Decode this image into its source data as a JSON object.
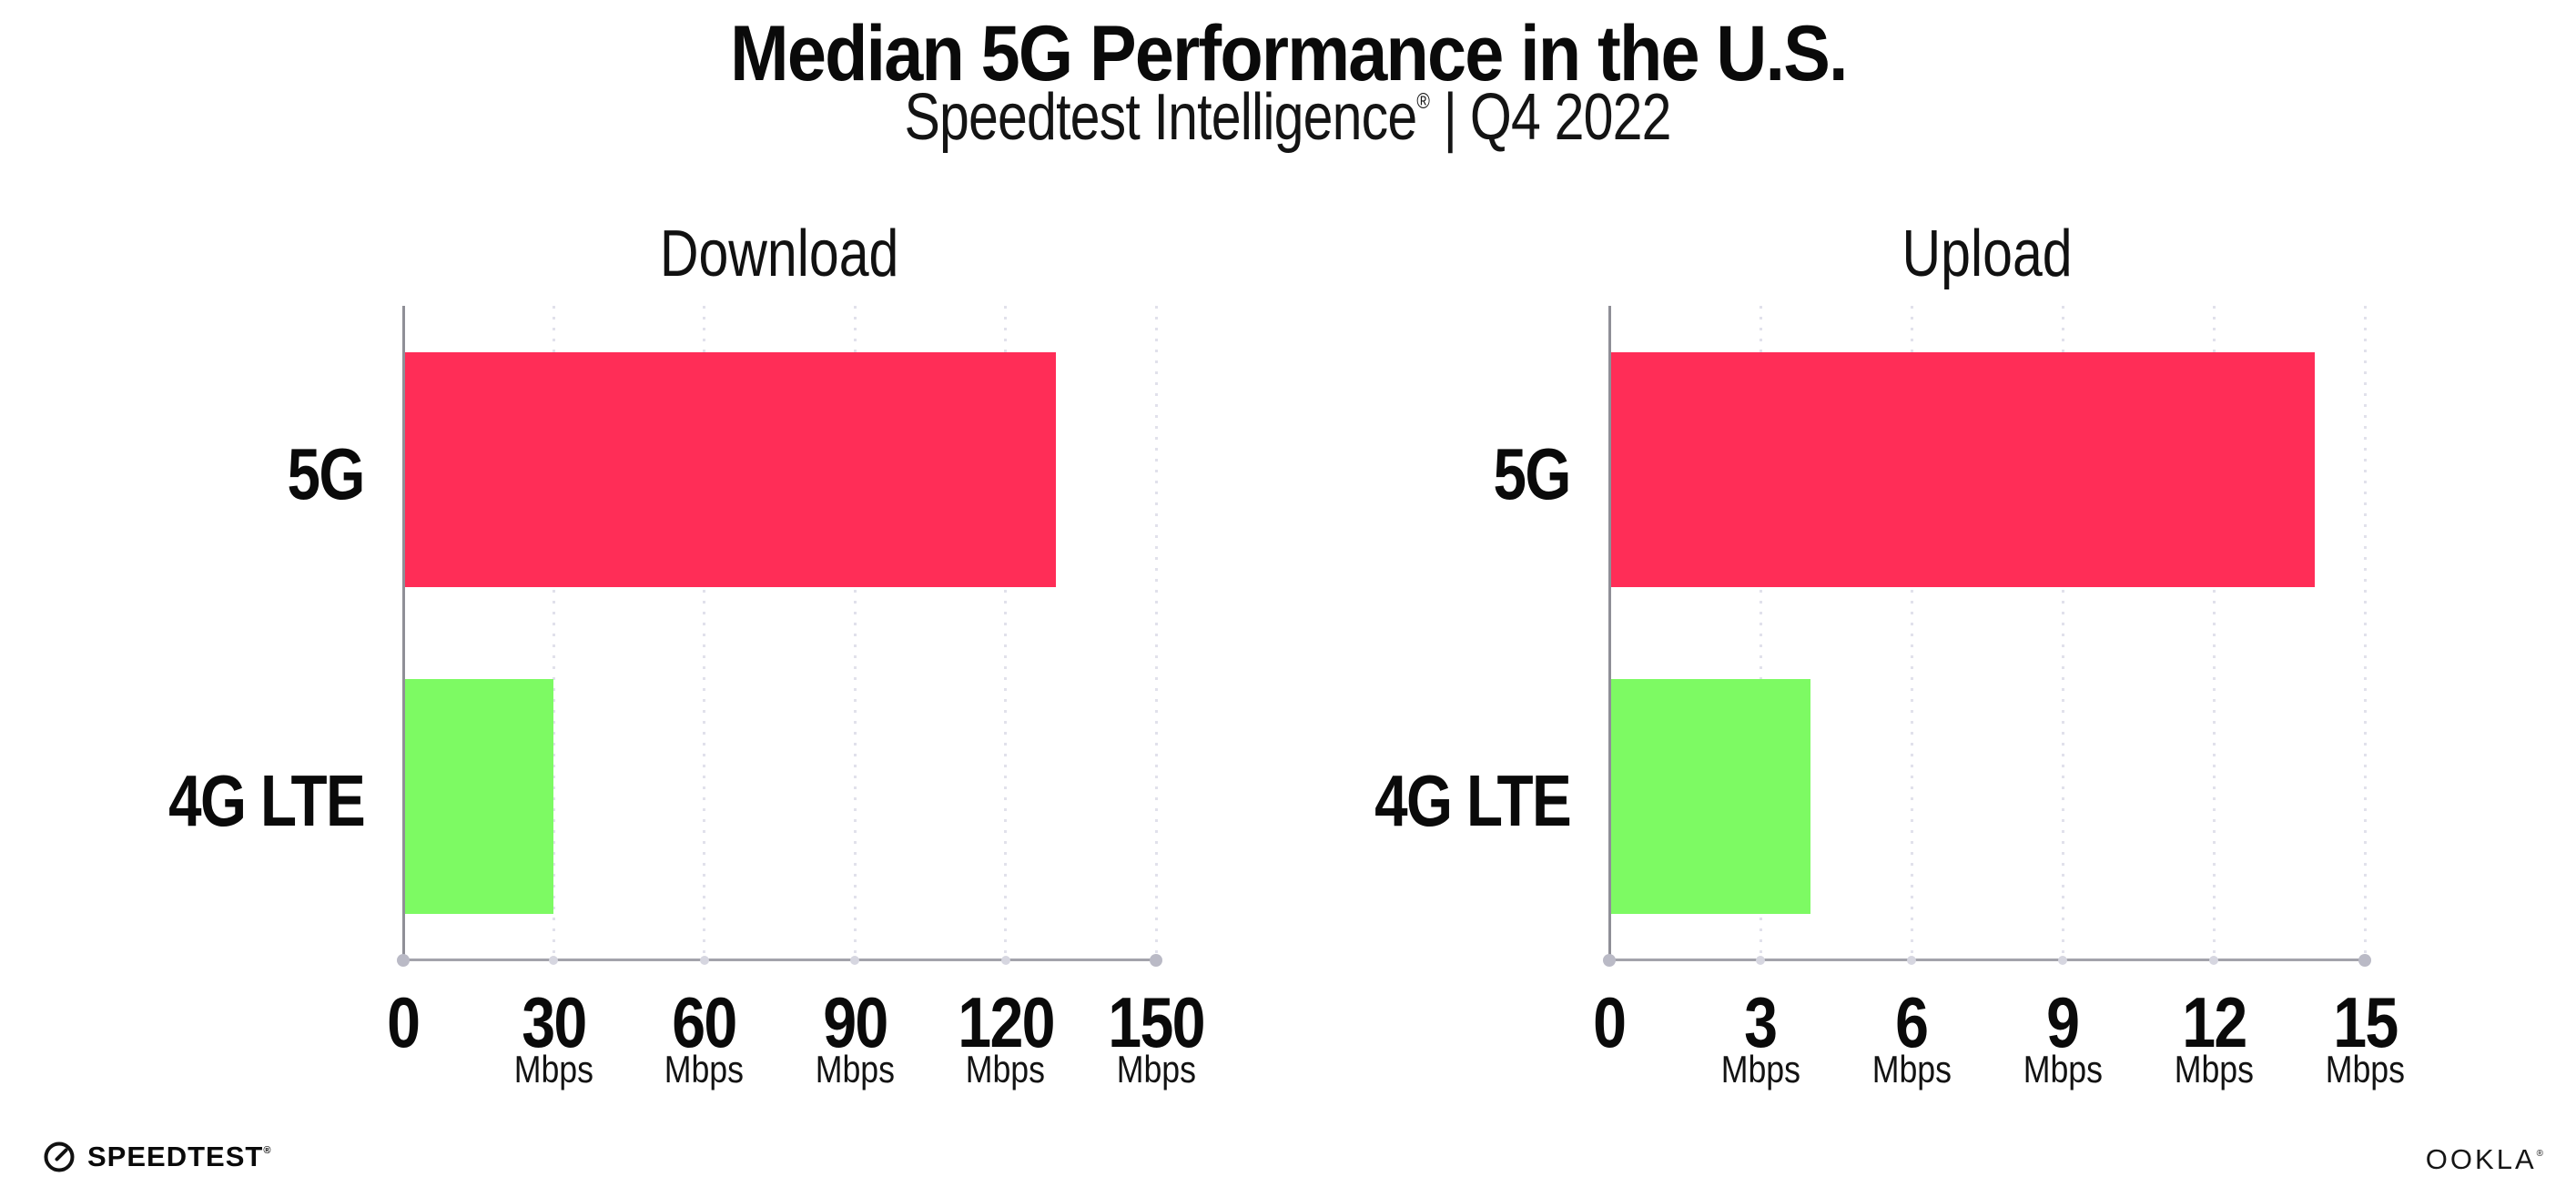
{
  "header": {
    "title": "Median 5G Performance in the U.S.",
    "subtitle_brand": "Speedtest Intelligence",
    "subtitle_registered": "®",
    "subtitle_separator": "|",
    "subtitle_period": "Q4 2022"
  },
  "chart_data": [
    {
      "type": "bar",
      "orientation": "horizontal",
      "title": "Download",
      "categories": [
        "5G",
        "4G LTE"
      ],
      "values": [
        130,
        30
      ],
      "value_unit": "Mbps",
      "xlim": [
        0,
        150
      ],
      "xticks": [
        0,
        30,
        60,
        90,
        120,
        150
      ],
      "xtick_unit_label": "Mbps",
      "bar_colors": [
        "#ff2d57",
        "#7dfa63"
      ],
      "grid": "dotted-vertical",
      "legend": "none"
    },
    {
      "type": "bar",
      "orientation": "horizontal",
      "title": "Upload",
      "categories": [
        "5G",
        "4G LTE"
      ],
      "values": [
        14,
        4
      ],
      "value_unit": "Mbps",
      "xlim": [
        0,
        15
      ],
      "xticks": [
        0,
        3,
        6,
        9,
        12,
        15
      ],
      "xtick_unit_label": "Mbps",
      "bar_colors": [
        "#ff2d57",
        "#7dfa63"
      ],
      "grid": "dotted-vertical",
      "legend": "none"
    }
  ],
  "footer": {
    "speedtest_label": "SPEEDTEST",
    "speedtest_registered": "®",
    "ookla_label": "OOKLA",
    "ookla_registered": "®"
  },
  "colors": {
    "bar_5g": "#ff2d57",
    "bar_4g_lte": "#7dfa63",
    "text": "#0a0a0a",
    "gridline_dots": "#e1e1eb",
    "x_axis": "#a3a3ab",
    "y_axis": "#8f8f97",
    "axis_end_dots": "#babac6"
  }
}
